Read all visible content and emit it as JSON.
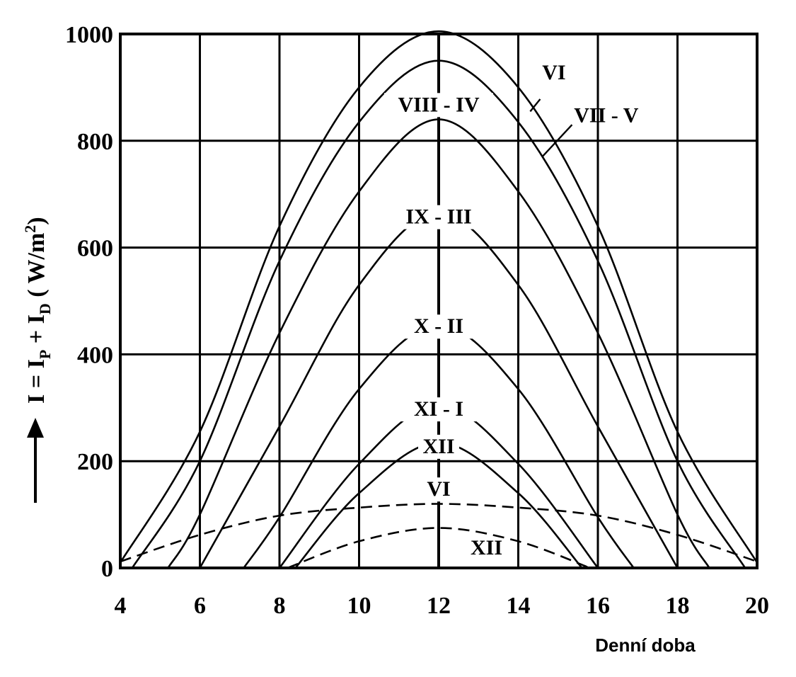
{
  "chart_data": {
    "type": "line",
    "xlabel": "Denní doba",
    "ylabel": {
      "prefix": "I = I",
      "sub1": "P",
      "plus": " +  I",
      "sub2": "D",
      "unit_open": "  ( W/m",
      "unit_sup": "2",
      "unit_close": ")"
    },
    "xlim": [
      4,
      20
    ],
    "ylim": [
      0,
      1000
    ],
    "x_ticks": [
      "4",
      "6",
      "8",
      "10",
      "12",
      "14",
      "16",
      "18",
      "20"
    ],
    "y_ticks": [
      "0",
      "200",
      "400",
      "600",
      "800",
      "1000"
    ],
    "grid": true,
    "series": [
      {
        "name": "VI",
        "style": "solid",
        "x": [
          4.0,
          6.0,
          8.0,
          10.0,
          12.0,
          14.0,
          16.0,
          18.0,
          20.0
        ],
        "y": [
          10,
          255,
          640,
          900,
          1005,
          900,
          640,
          255,
          10
        ]
      },
      {
        "name": "VII - V",
        "style": "solid",
        "x": [
          4.3,
          6.0,
          8.0,
          10.0,
          12.0,
          14.0,
          16.0,
          18.0,
          19.7
        ],
        "y": [
          0,
          200,
          575,
          835,
          950,
          835,
          575,
          200,
          0
        ]
      },
      {
        "name": "VIII - IV",
        "style": "solid",
        "x": [
          5.2,
          6.0,
          8.0,
          10.0,
          12.0,
          14.0,
          16.0,
          18.0,
          18.8
        ],
        "y": [
          0,
          100,
          440,
          705,
          840,
          705,
          440,
          100,
          0
        ]
      },
      {
        "name": "IX - III",
        "style": "solid",
        "x": [
          6.0,
          8.0,
          10.0,
          12.0,
          14.0,
          16.0,
          18.0
        ],
        "y": [
          0,
          265,
          530,
          665,
          530,
          265,
          0
        ]
      },
      {
        "name": "X - II",
        "style": "solid",
        "x": [
          7.1,
          8.0,
          10.0,
          12.0,
          14.0,
          16.0,
          16.9
        ],
        "y": [
          0,
          95,
          335,
          455,
          335,
          95,
          0
        ]
      },
      {
        "name": "XI - I",
        "style": "solid",
        "x": [
          8.0,
          10.0,
          12.0,
          14.0,
          16.0
        ],
        "y": [
          0,
          195,
          305,
          195,
          0
        ]
      },
      {
        "name": "XII",
        "style": "solid",
        "x": [
          8.4,
          10.0,
          12.0,
          14.0,
          15.6
        ],
        "y": [
          0,
          140,
          235,
          140,
          0
        ]
      },
      {
        "name": "VI",
        "style": "dashed",
        "x": [
          4.0,
          6.0,
          8.0,
          10.0,
          12.0,
          14.0,
          16.0,
          18.0,
          20.0
        ],
        "y": [
          12,
          62,
          98,
          113,
          120,
          113,
          98,
          62,
          12
        ]
      },
      {
        "name": "XII",
        "style": "dashed",
        "x": [
          8.2,
          10.0,
          12.0,
          14.0,
          15.8
        ],
        "y": [
          0,
          50,
          75,
          50,
          0
        ]
      }
    ],
    "labels": [
      {
        "text": "VI",
        "x": 14.6,
        "y": 915
      },
      {
        "text": "VII - V",
        "x": 15.4,
        "y": 835
      },
      {
        "text": "VIII - IV",
        "x": 12.0,
        "y": 855
      },
      {
        "text": "IX - III",
        "x": 12.0,
        "y": 645
      },
      {
        "text": "X - II",
        "x": 12.0,
        "y": 440
      },
      {
        "text": "XI - I",
        "x": 12.0,
        "y": 285
      },
      {
        "text": "XII",
        "x": 12.0,
        "y": 215
      },
      {
        "text": "VI",
        "x": 12.0,
        "y": 135
      },
      {
        "text": "XII",
        "x": 12.8,
        "y": 25
      }
    ]
  }
}
